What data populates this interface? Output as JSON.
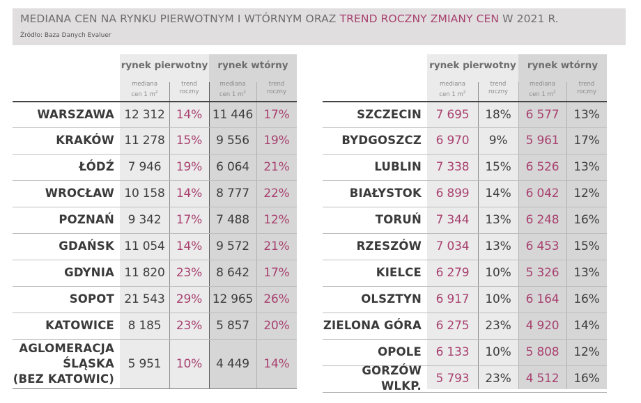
{
  "header": {
    "title_part1": "MEDIANA CEN NA RYNKU PIERWOTNYM I WTÓRNYM ORAZ ",
    "title_accent": "TREND ROCZNY ZMIANY CEN",
    "title_part2": " W 2021 R.",
    "source": "Źródło: Baza Danych Evaluer"
  },
  "colors": {
    "accent": "#a8416f",
    "header_band": "#e0dedf",
    "primary_col_bg": "#ebebeb",
    "secondary_col_bg": "#d6d6d6"
  },
  "columns": {
    "group_primary": "rynek pierwotny",
    "group_secondary": "rynek wtórny",
    "median_l1": "mediana",
    "median_l2": "cen 1 m",
    "median_sup": "2",
    "trend_l1": "trend",
    "trend_l2": "roczny"
  },
  "left_table": {
    "rows": [
      {
        "city": "WARSZAWA",
        "p_median": "12 312",
        "p_trend": "14%",
        "w_median": "11 446",
        "w_trend": "17%"
      },
      {
        "city": "KRAKÓW",
        "p_median": "11 278",
        "p_trend": "15%",
        "w_median": "9 556",
        "w_trend": "19%"
      },
      {
        "city": "ŁÓDŹ",
        "p_median": "7 946",
        "p_trend": "19%",
        "w_median": "6 064",
        "w_trend": "21%"
      },
      {
        "city": "WROCŁAW",
        "p_median": "10 158",
        "p_trend": "14%",
        "w_median": "8 777",
        "w_trend": "22%"
      },
      {
        "city": "POZNAŃ",
        "p_median": "9 342",
        "p_trend": "17%",
        "w_median": "7 488",
        "w_trend": "12%"
      },
      {
        "city": "GDAŃSK",
        "p_median": "11 054",
        "p_trend": "14%",
        "w_median": "9 572",
        "w_trend": "21%"
      },
      {
        "city": "GDYNIA",
        "p_median": "11 820",
        "p_trend": "23%",
        "w_median": "8 642",
        "w_trend": "17%"
      },
      {
        "city": "SOPOT",
        "p_median": "21 543",
        "p_trend": "29%",
        "w_median": "12 965",
        "w_trend": "26%"
      },
      {
        "city": "KATOWICE",
        "p_median": "8 185",
        "p_trend": "23%",
        "w_median": "5 857",
        "w_trend": "20%"
      },
      {
        "city_l1": "AGLOMERACJA",
        "city_l2": "ŚLĄSKA",
        "city_l3": "(BEZ KATOWIC)",
        "p_median": "5 951",
        "p_trend": "10%",
        "w_median": "4 449",
        "w_trend": "14%"
      }
    ]
  },
  "right_table": {
    "rows": [
      {
        "city": "SZCZECIN",
        "p_median": "7 695",
        "p_trend": "18%",
        "w_median": "6 577",
        "w_trend": "13%"
      },
      {
        "city": "BYDGOSZCZ",
        "p_median": "6 970",
        "p_trend": "9%",
        "w_median": "5 961",
        "w_trend": "17%"
      },
      {
        "city": "LUBLIN",
        "p_median": "7 338",
        "p_trend": "15%",
        "w_median": "6 526",
        "w_trend": "13%"
      },
      {
        "city": "BIAŁYSTOK",
        "p_median": "6 899",
        "p_trend": "14%",
        "w_median": "6 042",
        "w_trend": "12%"
      },
      {
        "city": "TORUŃ",
        "p_median": "7 344",
        "p_trend": "13%",
        "w_median": "6 248",
        "w_trend": "16%"
      },
      {
        "city": "RZESZÓW",
        "p_median": "7 034",
        "p_trend": "13%",
        "w_median": "6 453",
        "w_trend": "15%"
      },
      {
        "city": "KIELCE",
        "p_median": "6 279",
        "p_trend": "10%",
        "w_median": "5 326",
        "w_trend": "13%"
      },
      {
        "city": "OLSZTYN",
        "p_median": "6 917",
        "p_trend": "10%",
        "w_median": "6 164",
        "w_trend": "16%"
      },
      {
        "city": "ZIELONA GÓRA",
        "p_median": "6 275",
        "p_trend": "23%",
        "w_median": "4 920",
        "w_trend": "14%"
      },
      {
        "city": "OPOLE",
        "p_median": "6 133",
        "p_trend": "10%",
        "w_median": "5 808",
        "w_trend": "12%"
      },
      {
        "city": "GORZÓW WLKP.",
        "p_median": "5 793",
        "p_trend": "23%",
        "w_median": "4 512",
        "w_trend": "16%"
      }
    ]
  }
}
